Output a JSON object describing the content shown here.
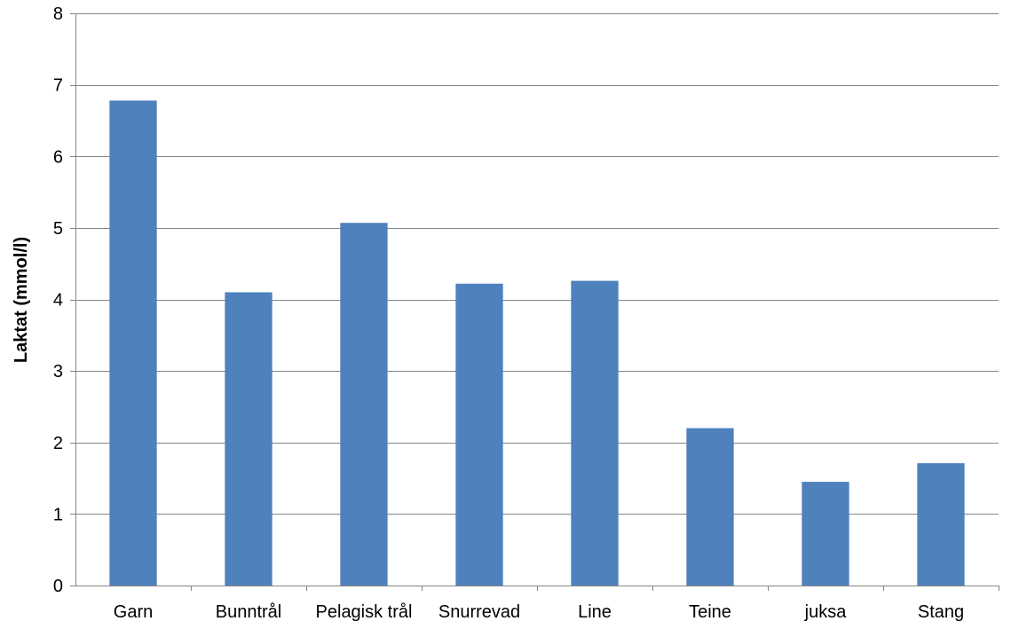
{
  "chart_data": {
    "type": "bar",
    "title": "",
    "xlabel": "",
    "ylabel": "Laktat (mmol/l)",
    "categories": [
      "Garn",
      "Bunntrål",
      "Pelagisk trål",
      "Snurrevad",
      "Line",
      "Teine",
      "juksa",
      "Stang"
    ],
    "values": [
      6.78,
      4.1,
      5.07,
      4.22,
      4.26,
      2.2,
      1.45,
      1.71
    ],
    "ylim": [
      0,
      8
    ],
    "yticks": [
      "0",
      "1",
      "2",
      "3",
      "4",
      "5",
      "6",
      "7",
      "8"
    ],
    "grid": true,
    "legend": "none",
    "bar_color": "#4F81BD",
    "grid_color": "#868686"
  }
}
